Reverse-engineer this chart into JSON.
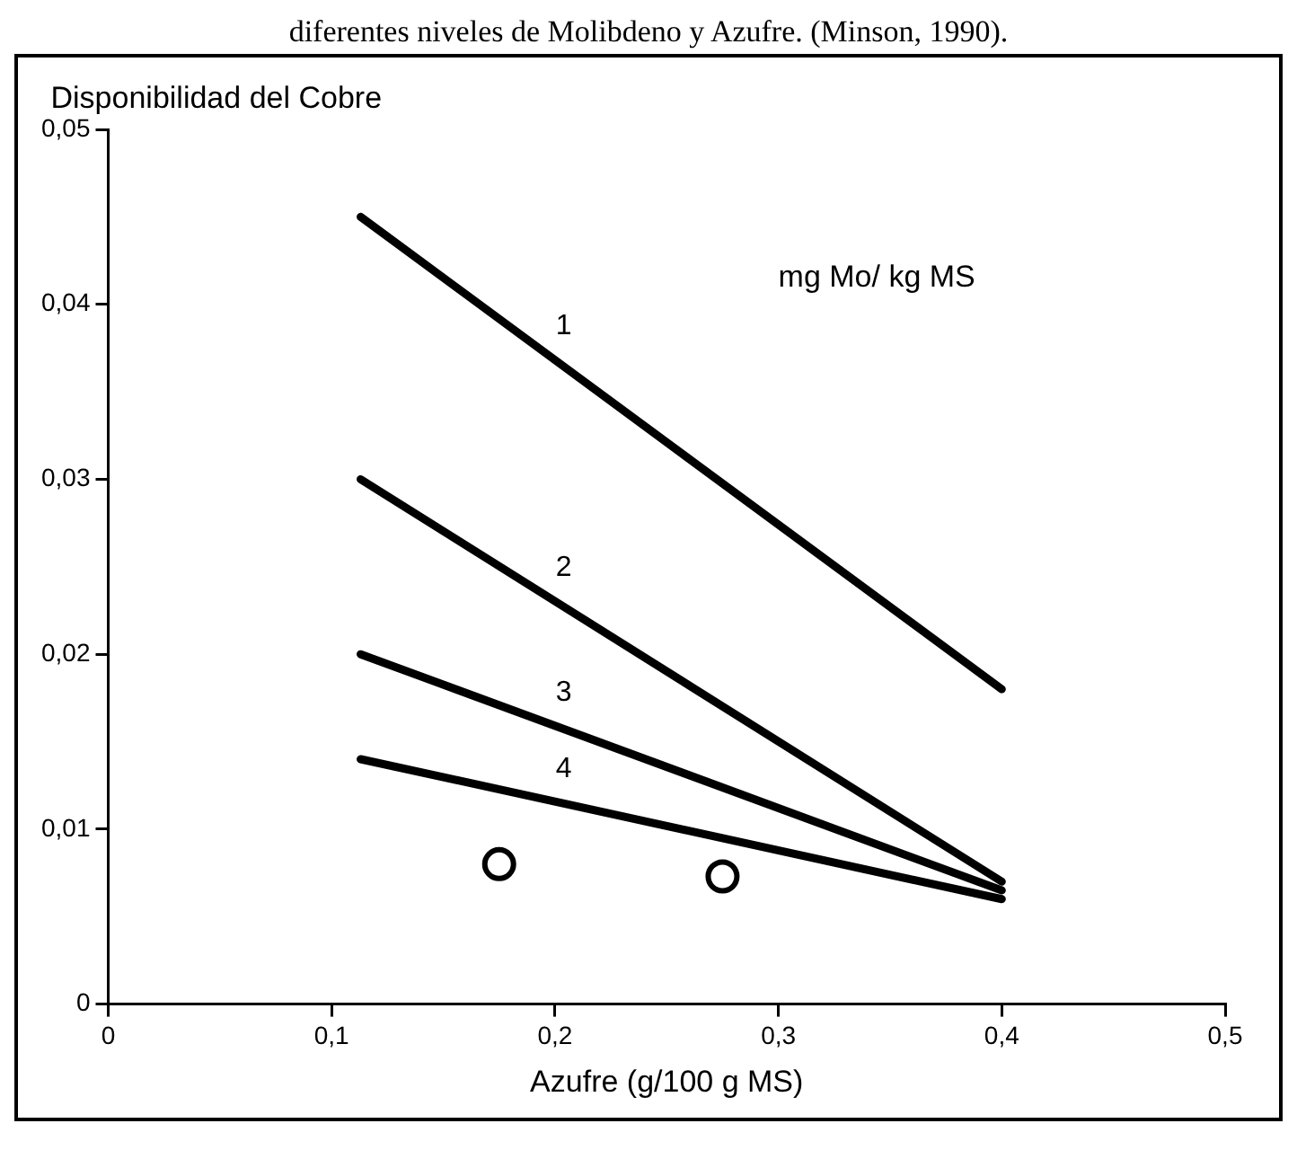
{
  "chart_data": {
    "type": "line",
    "title": "diferentes niveles de Molibdeno y Azufre. (Minson, 1990).",
    "xlabel": "Azufre (g/100 g MS)",
    "ylabel": "Disponibilidad del Cobre",
    "annotations": [
      "mg Mo/ kg MS"
    ],
    "series": [
      {
        "name": "1",
        "color": "#000000",
        "x": [
          0.113,
          0.4
        ],
        "values": [
          0.045,
          0.018
        ]
      },
      {
        "name": "2",
        "color": "#000000",
        "x": [
          0.113,
          0.4
        ],
        "values": [
          0.03,
          0.007
        ]
      },
      {
        "name": "3",
        "color": "#000000",
        "x": [
          0.113,
          0.4
        ],
        "values": [
          0.02,
          0.0065
        ]
      },
      {
        "name": "4",
        "color": "#000000",
        "x": [
          0.113,
          0.4
        ],
        "values": [
          0.014,
          0.006
        ]
      },
      {
        "type": "scatter",
        "marker": "circle",
        "color": "#000000",
        "x": [
          0.175,
          0.275
        ],
        "values": [
          0.008,
          0.0073
        ]
      }
    ],
    "xlim": [
      0,
      0.5
    ],
    "xticks": [
      0,
      {
        "value": 0.1,
        "label": "0,1"
      },
      {
        "value": 0.2,
        "label": "0,2"
      },
      {
        "value": 0.3,
        "label": "0,3"
      },
      {
        "value": 0.4,
        "label": "0,4"
      },
      {
        "value": 0.5,
        "label": "0,5"
      }
    ],
    "ylim": [
      0,
      0.05
    ],
    "yticks": [
      0,
      {
        "value": 0.01,
        "label": "0,01"
      },
      {
        "value": 0.02,
        "label": "0,02"
      },
      {
        "value": 0.03,
        "label": "0,03"
      },
      {
        "value": 0.04,
        "label": "0,04"
      },
      {
        "value": 0.05,
        "label": "0,05"
      }
    ],
    "grid": false,
    "legend": false
  }
}
